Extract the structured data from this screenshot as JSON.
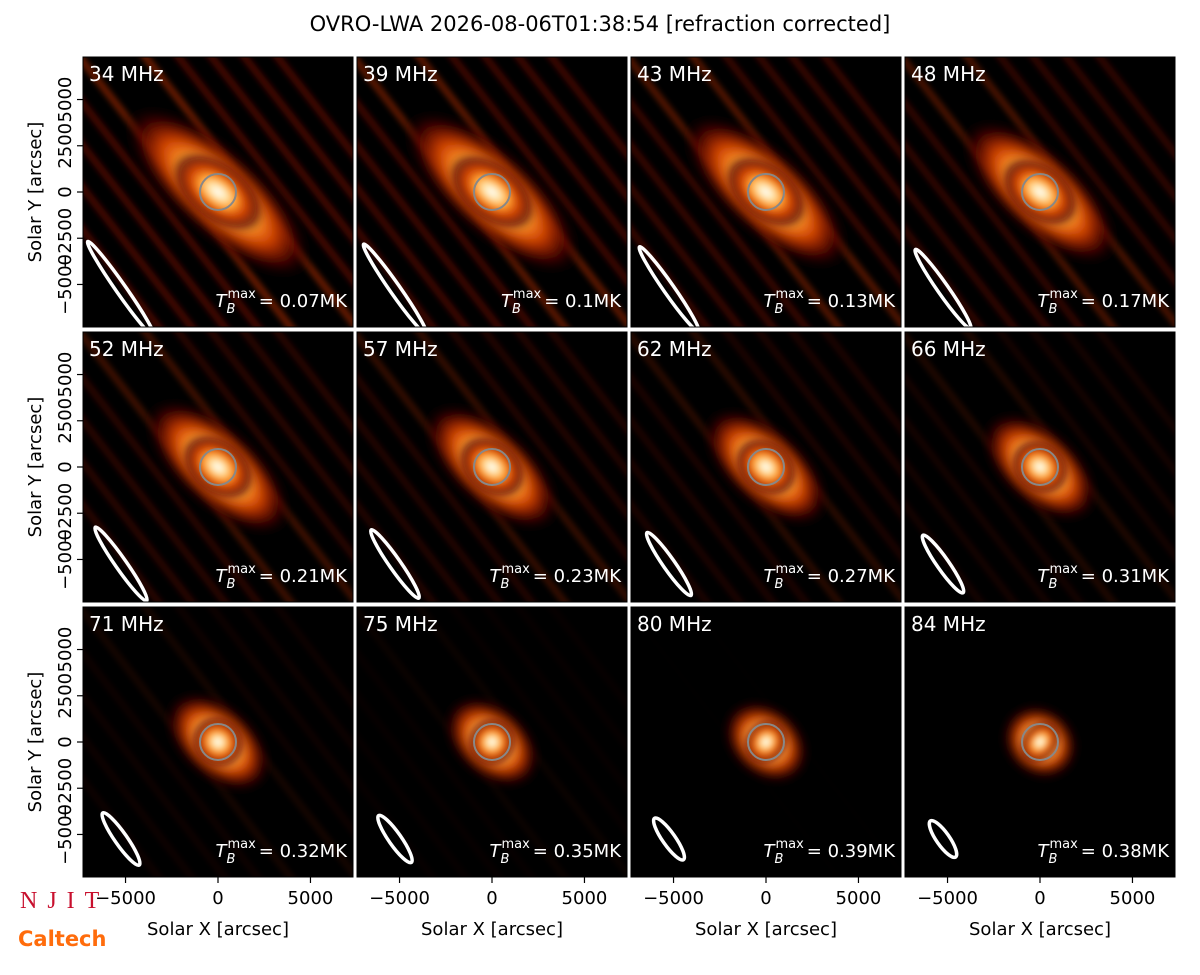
{
  "suptitle": "OVRO-LWA 2026-08-06T01:38:54 [refraction corrected]",
  "logos": {
    "njit": "NJIT",
    "caltech": "Caltech"
  },
  "chart_data": [
    {
      "type": "image",
      "title": "34 MHz",
      "annotation": {
        "symbol": "T",
        "sub": "B",
        "sup": "max",
        "text": "= 0.07MK"
      },
      "xlim": [
        -7300,
        7300
      ],
      "ylim": [
        -7300,
        7300
      ],
      "ylabel": "Solar Y [arcsec]",
      "yticks": [
        {
          "value": -5000,
          "label": "−5000"
        },
        {
          "value": -2500,
          "label": "−2500"
        },
        0,
        2500,
        5000
      ]
    },
    {
      "type": "image",
      "title": "39 MHz",
      "annotation": {
        "symbol": "T",
        "sub": "B",
        "sup": "max",
        "text": "= 0.1MK"
      },
      "xlim": [
        -7300,
        7300
      ],
      "ylim": [
        -7300,
        7300
      ]
    },
    {
      "type": "image",
      "title": "43 MHz",
      "annotation": {
        "symbol": "T",
        "sub": "B",
        "sup": "max",
        "text": "= 0.13MK"
      },
      "xlim": [
        -7300,
        7300
      ],
      "ylim": [
        -7300,
        7300
      ]
    },
    {
      "type": "image",
      "title": "48 MHz",
      "annotation": {
        "symbol": "T",
        "sub": "B",
        "sup": "max",
        "text": "= 0.17MK"
      },
      "xlim": [
        -7300,
        7300
      ],
      "ylim": [
        -7300,
        7300
      ]
    },
    {
      "type": "image",
      "title": "52 MHz",
      "annotation": {
        "symbol": "T",
        "sub": "B",
        "sup": "max",
        "text": "= 0.21MK"
      },
      "xlim": [
        -7300,
        7300
      ],
      "ylim": [
        -7300,
        7300
      ],
      "ylabel": "Solar Y [arcsec]",
      "yticks": [
        {
          "value": -5000,
          "label": "−5000"
        },
        {
          "value": -2500,
          "label": "−2500"
        },
        0,
        2500,
        5000
      ]
    },
    {
      "type": "image",
      "title": "57 MHz",
      "annotation": {
        "symbol": "T",
        "sub": "B",
        "sup": "max",
        "text": "= 0.23MK"
      },
      "xlim": [
        -7300,
        7300
      ],
      "ylim": [
        -7300,
        7300
      ]
    },
    {
      "type": "image",
      "title": "62 MHz",
      "annotation": {
        "symbol": "T",
        "sub": "B",
        "sup": "max",
        "text": "= 0.27MK"
      },
      "xlim": [
        -7300,
        7300
      ],
      "ylim": [
        -7300,
        7300
      ]
    },
    {
      "type": "image",
      "title": "66 MHz",
      "annotation": {
        "symbol": "T",
        "sub": "B",
        "sup": "max",
        "text": "= 0.31MK"
      },
      "xlim": [
        -7300,
        7300
      ],
      "ylim": [
        -7300,
        7300
      ]
    },
    {
      "type": "image",
      "title": "71 MHz",
      "annotation": {
        "symbol": "T",
        "sub": "B",
        "sup": "max",
        "text": "= 0.32MK"
      },
      "xlim": [
        -7300,
        7300
      ],
      "ylim": [
        -7300,
        7300
      ],
      "ylabel": "Solar Y [arcsec]",
      "yticks": [
        {
          "value": -5000,
          "label": "−5000"
        },
        {
          "value": -2500,
          "label": "−2500"
        },
        0,
        2500,
        5000
      ],
      "xlabel": "Solar X [arcsec]",
      "xticks": [
        {
          "value": -5000,
          "label": "−5000"
        },
        0,
        5000
      ]
    },
    {
      "type": "image",
      "title": "75 MHz",
      "annotation": {
        "symbol": "T",
        "sub": "B",
        "sup": "max",
        "text": "= 0.35MK"
      },
      "xlim": [
        -7300,
        7300
      ],
      "ylim": [
        -7300,
        7300
      ],
      "xlabel": "Solar X [arcsec]",
      "xticks": [
        {
          "value": -5000,
          "label": "−5000"
        },
        0,
        5000
      ]
    },
    {
      "type": "image",
      "title": "80 MHz",
      "annotation": {
        "symbol": "T",
        "sub": "B",
        "sup": "max",
        "text": "= 0.39MK"
      },
      "xlim": [
        -7300,
        7300
      ],
      "ylim": [
        -7300,
        7300
      ],
      "xlabel": "Solar X [arcsec]",
      "xticks": [
        {
          "value": -5000,
          "label": "−5000"
        },
        0,
        5000
      ]
    },
    {
      "type": "image",
      "title": "84 MHz",
      "annotation": {
        "symbol": "T",
        "sub": "B",
        "sup": "max",
        "text": "= 0.38MK"
      },
      "xlim": [
        -7300,
        7300
      ],
      "ylim": [
        -7300,
        7300
      ],
      "xlabel": "Solar X [arcsec]",
      "xticks": [
        {
          "value": -5000,
          "label": "−5000"
        },
        0,
        5000
      ]
    }
  ]
}
